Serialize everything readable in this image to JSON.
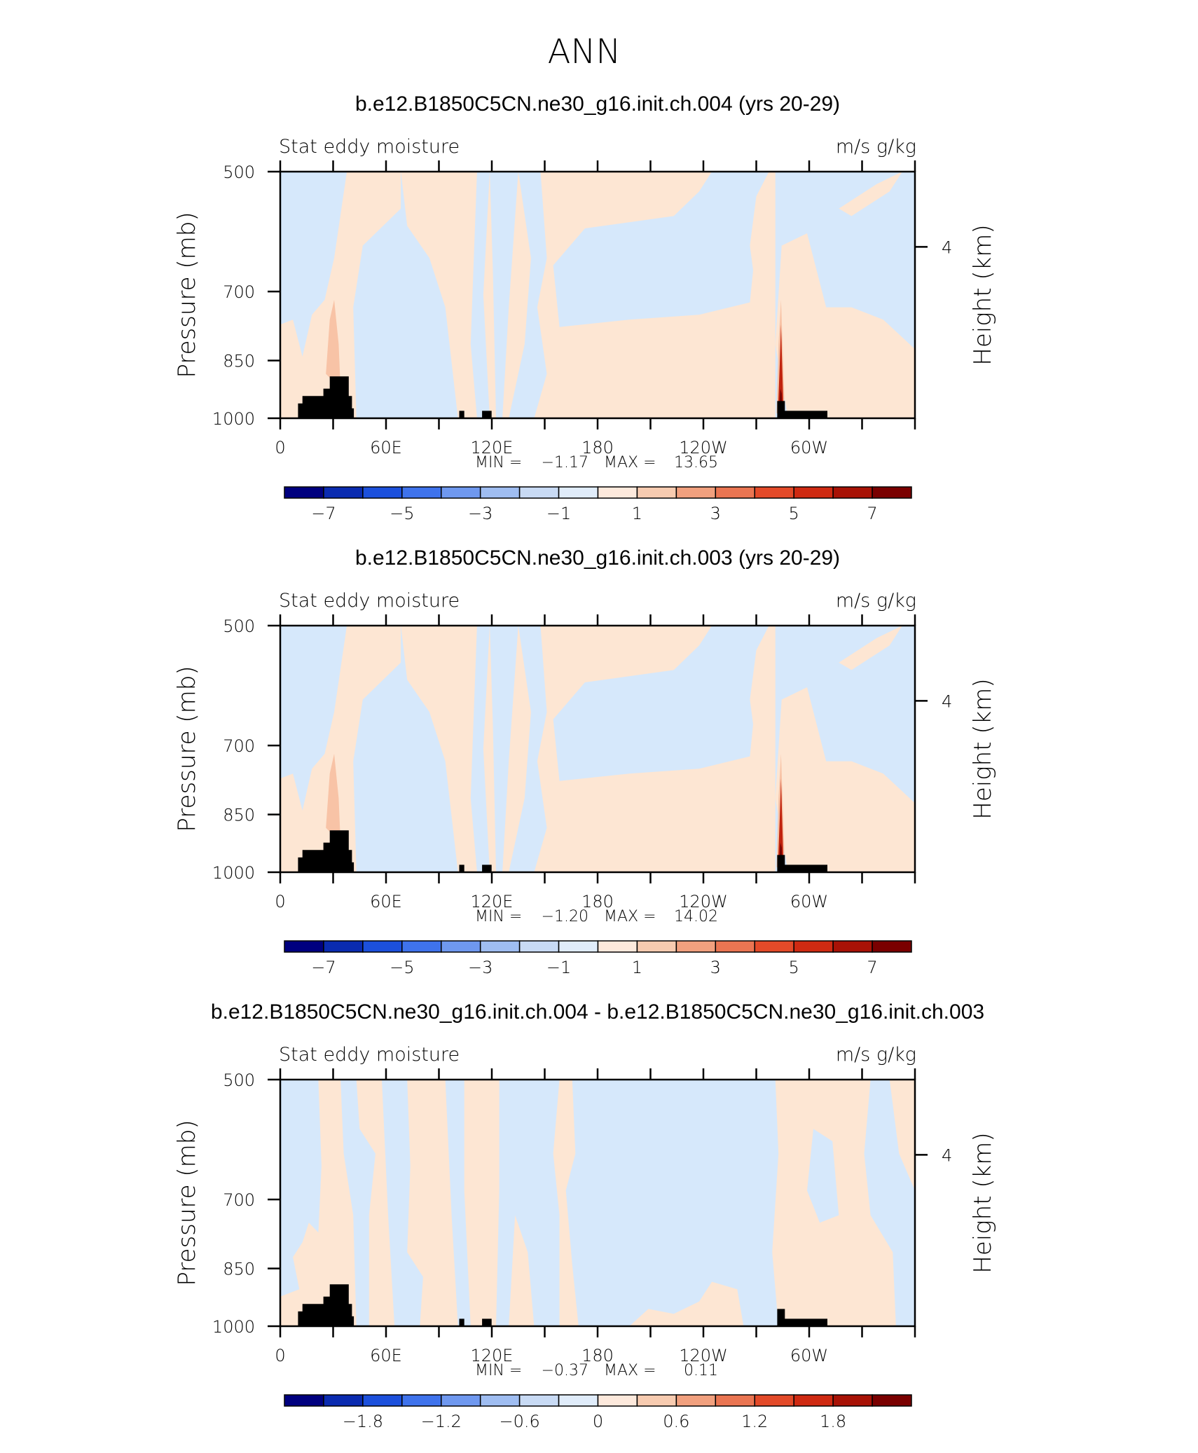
{
  "chart_data": {
    "type": "heatmap",
    "title": "ANN",
    "panels": [
      {
        "title": "b.e12.B1850C5CN.ne30_g16.init.ch.004 (yrs 20-29)",
        "left_label": "Stat eddy moisture",
        "right_label": "m/s g/kg",
        "ylabel": "Pressure (mb)",
        "y2label": "Height (km)",
        "y2ticks": [
          "4"
        ],
        "yticks": [
          "500",
          "700",
          "850",
          "1000"
        ],
        "xticks": [
          "0",
          "60E",
          "120E",
          "180",
          "120W",
          "60W"
        ],
        "stats": {
          "min_label": "MIN =",
          "min": "−1.17",
          "max_label": "MAX =",
          "max": "13.65"
        },
        "colorbar": {
          "labels": [
            "−7",
            "−5",
            "−3",
            "−1",
            "1",
            "3",
            "5",
            "7"
          ]
        }
      },
      {
        "title": "b.e12.B1850C5CN.ne30_g16.init.ch.003 (yrs 20-29)",
        "left_label": "Stat eddy moisture",
        "right_label": "m/s g/kg",
        "ylabel": "Pressure (mb)",
        "y2label": "Height (km)",
        "y2ticks": [
          "4"
        ],
        "yticks": [
          "500",
          "700",
          "850",
          "1000"
        ],
        "xticks": [
          "0",
          "60E",
          "120E",
          "180",
          "120W",
          "60W"
        ],
        "stats": {
          "min_label": "MIN =",
          "min": "−1.20",
          "max_label": "MAX =",
          "max": "14.02"
        },
        "colorbar": {
          "labels": [
            "−7",
            "−5",
            "−3",
            "−1",
            "1",
            "3",
            "5",
            "7"
          ]
        }
      },
      {
        "title": "b.e12.B1850C5CN.ne30_g16.init.ch.004 - b.e12.B1850C5CN.ne30_g16.init.ch.003",
        "left_label": "Stat eddy moisture",
        "right_label": "m/s g/kg",
        "ylabel": "Pressure (mb)",
        "y2label": "Height (km)",
        "y2ticks": [
          "4"
        ],
        "yticks": [
          "500",
          "700",
          "850",
          "1000"
        ],
        "xticks": [
          "0",
          "60E",
          "120E",
          "180",
          "120W",
          "60W"
        ],
        "stats": {
          "min_label": "MIN =",
          "min": "−0.37",
          "max_label": "MAX =",
          "max": "0.11"
        },
        "colorbar": {
          "labels": [
            "−1.8",
            "−1.2",
            "−0.6",
            "0",
            "0.6",
            "1.2",
            "1.8"
          ]
        }
      }
    ],
    "colors": {
      "light_blue": "#d6e8fb",
      "light_peach": "#fde6d3",
      "peach": "#f8c3a6",
      "red_peak": "#c1230e",
      "dark_red": "#6f0000",
      "land": "#000000",
      "colorbar": [
        "#00007f",
        "#0a2bb0",
        "#1c50dc",
        "#3f73ec",
        "#6f98ef",
        "#9fbdf1",
        "#c8daf4",
        "#e0ecfa",
        "#fde9dc",
        "#f7cbb0",
        "#f1a07e",
        "#ea7552",
        "#e34a29",
        "#cf2a12",
        "#a81206",
        "#7a0000"
      ]
    }
  }
}
